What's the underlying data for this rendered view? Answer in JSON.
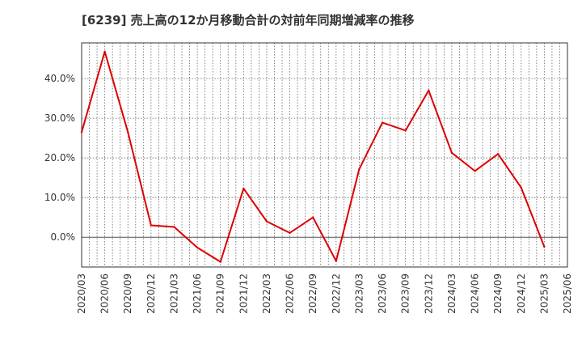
{
  "chart_data": {
    "type": "line",
    "title": "[6239]  売上高の12か月移動合計の対前年同期増減率の推移",
    "xlabel": "",
    "ylabel": "",
    "ylim": [
      -7.5,
      49
    ],
    "yticks": [
      0,
      10,
      20,
      30,
      40
    ],
    "ytick_labels": [
      "0.0%",
      "10.0%",
      "20.0%",
      "30.0%",
      "40.0%"
    ],
    "categories": [
      "2020/03",
      "2020/06",
      "2020/09",
      "2020/12",
      "2021/03",
      "2021/06",
      "2021/09",
      "2021/12",
      "2022/03",
      "2022/06",
      "2022/09",
      "2022/12",
      "2023/03",
      "2023/06",
      "2023/09",
      "2023/12",
      "2024/03",
      "2024/06",
      "2024/09",
      "2024/12",
      "2025/03",
      "2025/06"
    ],
    "series": [
      {
        "name": "増減率",
        "color": "#dd0000",
        "values": [
          26.5,
          46.8,
          26.5,
          3.0,
          2.6,
          -2.6,
          -6.2,
          12.3,
          4.0,
          1.1,
          5.0,
          -6.0,
          17.2,
          28.9,
          26.9,
          37.0,
          21.3,
          16.7,
          21.0,
          12.5,
          -2.4,
          null
        ]
      }
    ],
    "grid": true,
    "colors": {
      "line": "#dd0000",
      "grid": "#666666",
      "axis": "#333333",
      "label": "#333333"
    }
  }
}
